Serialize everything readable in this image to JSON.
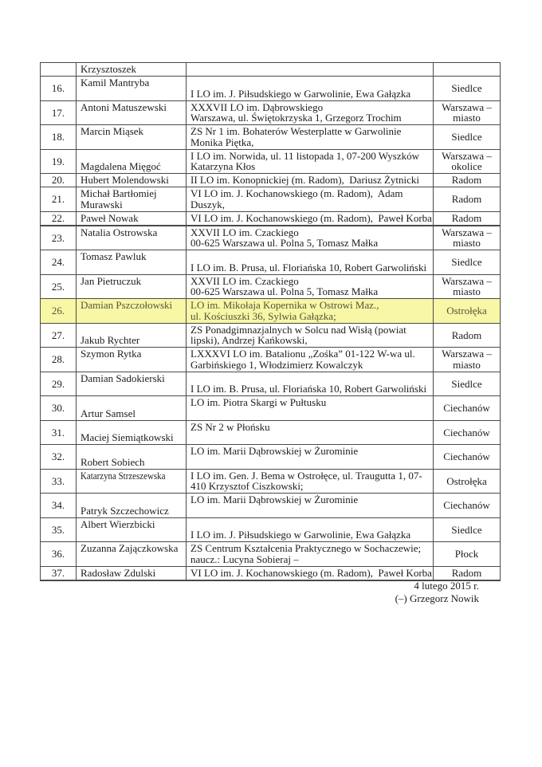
{
  "document": {
    "type": "results-list-page",
    "language": "pl"
  },
  "table": {
    "highlight_color": "#f7f7a6",
    "highlight_text_color": "#55553a",
    "border_color": "#4a4a4a",
    "columns": [
      "number",
      "participant",
      "school",
      "region"
    ],
    "rows": [
      {
        "num": "",
        "name": "Krzysztoszek",
        "school": "",
        "city": ""
      },
      {
        "num": "16.",
        "name": "Kamil Mantryba",
        "school": "\nI LO im. J. Piłsudskiego w Garwolinie, Ewa Gałązka",
        "city": "Siedlce"
      },
      {
        "num": "17.",
        "name": "Antoni Matuszewski",
        "school": "XXXVII LO im. Dąbrowskiego\nWarszawa, ul. Świętokrzyska 1, Grzegorz Trochim",
        "city": "Warszawa –\nmiasto"
      },
      {
        "num": "18.",
        "name": "Marcin Miąsek",
        "school": "ZS Nr 1 im. Bohaterów Westerplatte w Garwolinie\nMonika Piętka,",
        "city": "Siedlce"
      },
      {
        "num": "19.",
        "name": "\nMagdalena Mięgoć",
        "school": "I LO im. Norwida, ul. 11 listopada 1, 07-200 Wyszków\nKatarzyna Kłos",
        "city": "Warszawa –\nokolice"
      },
      {
        "num": "20.",
        "name": "Hubert Molendowski",
        "school": "II LO im. Konopnickiej (m. Radom),  Dariusz Żytnicki",
        "city": "Radom"
      },
      {
        "num": "21.",
        "name": "Michał Bartłomiej\nMurawski",
        "school": "VI LO im. J. Kochanowskiego (m. Radom),  Adam\nDuszyk,",
        "city": "Radom"
      },
      {
        "num": "22.",
        "name": "Paweł Nowak",
        "school": "VI LO im. J. Kochanowskiego (m. Radom),  Paweł Korba\n",
        "city": "Radom"
      },
      {
        "num": "23.",
        "name": "Natalia Ostrowska",
        "school": "XXVII LO im. Czackiego\n00-625 Warszawa ul. Polna 5, Tomasz Małka",
        "city": "Warszawa –\nmiasto"
      },
      {
        "num": "24.",
        "name": "Tomasz Pawluk",
        "school": "\nI LO im. B. Prusa, ul. Floriańska 10, Robert Garwoliński",
        "city": "Siedlce"
      },
      {
        "num": "25.",
        "name": "Jan Pietruczuk",
        "school": "XXVII LO im. Czackiego\n00-625 Warszawa ul. Polna 5, Tomasz Małka",
        "city": "Warszawa –\nmiasto"
      },
      {
        "num": "26.",
        "name": "Damian Pszczołowski",
        "school": "LO im. Mikołaja Kopernika w Ostrowi Maz.,\nul. Kościuszki 36, Sylwia Gałązka;",
        "city": "Ostrołęka",
        "highlight": true
      },
      {
        "num": "27.",
        "name": "\nJakub Rychter",
        "school": "ZS Ponadgimnazjalnych w Solcu nad Wisłą (powiat\nlipski), Andrzej Kańkowski,",
        "city": "Radom"
      },
      {
        "num": "28.",
        "name": "Szymon Rytka",
        "school": "LXXXVI LO im. Batalionu „Zośka” 01-122 W-wa ul.\nGarbińskiego 1, Włodzimierz Kowalczyk",
        "city": "Warszawa –\nmiasto"
      },
      {
        "num": "29.",
        "name": "Damian Sadokierski",
        "school": "\nI LO im. B. Prusa, ul. Floriańska 10, Robert Garwoliński",
        "city": "Siedlce"
      },
      {
        "num": "30.",
        "name": "\nArtur Samsel",
        "school": "LO im. Piotra Skargi w Pułtusku\n",
        "city": "Ciechanów"
      },
      {
        "num": "31.",
        "name": "\nMaciej Siemiątkowski",
        "school": "ZS Nr 2 w Płońsku\n",
        "city": "Ciechanów"
      },
      {
        "num": "32.",
        "name": "\nRobert Sobiech",
        "school": "LO im. Marii Dąbrowskiej w Żurominie\n",
        "city": "Ciechanów"
      },
      {
        "num": "33.",
        "name": "Katarzyna Strzeszewska",
        "name_style": "condensed",
        "school": "I LO im. Gen. J. Bema w Ostrołęce, ul. Traugutta 1, 07-\n410 Krzysztof Ciszkowski;",
        "city": "Ostrołęka"
      },
      {
        "num": "34.",
        "name": "\nPatryk Szczechowicz",
        "school": "LO im. Marii Dąbrowskiej w Żurominie\n",
        "city": "Ciechanów"
      },
      {
        "num": "35.",
        "name": "Albert Wierzbicki",
        "school": "\nI LO im. J. Piłsudskiego w Garwolinie, Ewa Gałązka",
        "city": "Siedlce"
      },
      {
        "num": "36.",
        "name": "Zuzanna Zajączkowska",
        "school": "ZS Centrum Kształcenia Praktycznego w Sochaczewie;\nnaucz.: Lucyna Sobieraj –",
        "city": "Płock"
      },
      {
        "num": "37.",
        "name": "Radosław Zdulski",
        "school": "VI LO im. J. Kochanowskiego (m. Radom),  Paweł Korba",
        "city": "Radom"
      }
    ]
  },
  "footer": {
    "date": "4 lutego 2015 r.",
    "signature": "(–) Grzegorz Nowik"
  }
}
